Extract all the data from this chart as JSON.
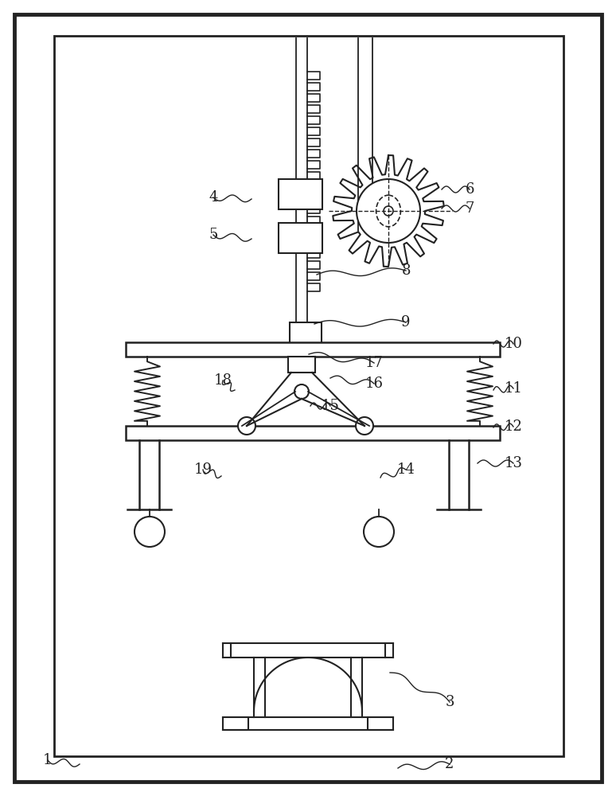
{
  "bg_color": "#ffffff",
  "line_color": "#222222",
  "figsize": [
    7.74,
    10.0
  ],
  "dpi": 100,
  "labels": [
    [
      "1",
      60,
      955,
      100,
      960
    ],
    [
      "2",
      565,
      960,
      500,
      965
    ],
    [
      "3",
      565,
      882,
      490,
      845
    ],
    [
      "4",
      268,
      248,
      316,
      250
    ],
    [
      "5",
      268,
      295,
      316,
      300
    ],
    [
      "6",
      590,
      238,
      555,
      238
    ],
    [
      "7",
      590,
      262,
      555,
      262
    ],
    [
      "8",
      510,
      340,
      398,
      345
    ],
    [
      "9",
      510,
      405,
      395,
      407
    ],
    [
      "10",
      645,
      432,
      620,
      432
    ],
    [
      "11",
      645,
      488,
      620,
      490
    ],
    [
      "12",
      645,
      536,
      620,
      537
    ],
    [
      "13",
      645,
      582,
      600,
      582
    ],
    [
      "14",
      510,
      590,
      478,
      600
    ],
    [
      "15",
      415,
      510,
      390,
      510
    ],
    [
      "16",
      470,
      482,
      415,
      475
    ],
    [
      "17",
      470,
      456,
      388,
      445
    ],
    [
      "18",
      280,
      478,
      295,
      490
    ],
    [
      "19",
      255,
      590,
      278,
      598
    ]
  ]
}
